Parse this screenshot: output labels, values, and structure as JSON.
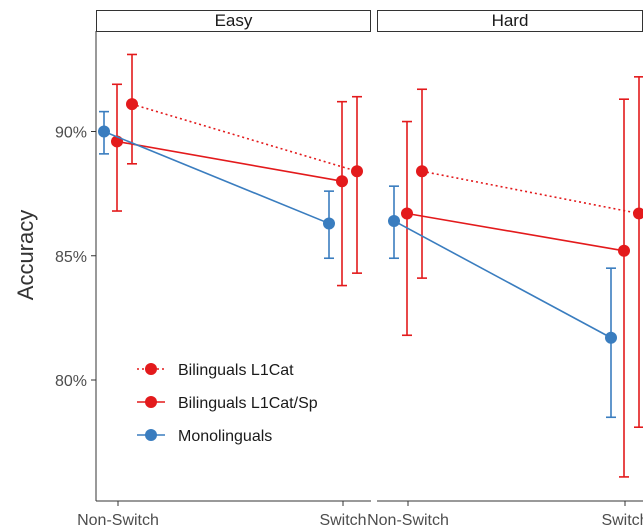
{
  "chart_data": {
    "type": "line",
    "ylabel": "Accuracy",
    "xlabel": "",
    "ylim": [
      75.0,
      94.5
    ],
    "yticks": [
      80,
      85,
      90
    ],
    "ytick_labels": [
      "80%",
      "85%",
      "90%"
    ],
    "categories": [
      "Non-Switch",
      "Switch"
    ],
    "grid": false,
    "legend_position": "bottom-left",
    "panels": [
      {
        "title": "Easy",
        "series": [
          {
            "name": "Bilinguals L1Cat",
            "color": "#e31a1c",
            "line_style": "dotted",
            "values": [
              91.1,
              88.4
            ],
            "ci_low": [
              88.7,
              84.3
            ],
            "ci_high": [
              93.1,
              91.4
            ]
          },
          {
            "name": "Bilinguals L1Cat/Sp",
            "color": "#e31a1c",
            "line_style": "solid",
            "values": [
              89.6,
              88.0
            ],
            "ci_low": [
              86.8,
              83.8
            ],
            "ci_high": [
              91.9,
              91.2
            ]
          },
          {
            "name": "Monolinguals",
            "color": "#3a7dbf",
            "line_style": "solid",
            "values": [
              90.0,
              86.3
            ],
            "ci_low": [
              89.1,
              84.9
            ],
            "ci_high": [
              90.8,
              87.6
            ]
          }
        ]
      },
      {
        "title": "Hard",
        "series": [
          {
            "name": "Bilinguals L1Cat",
            "color": "#e31a1c",
            "line_style": "dotted",
            "values": [
              88.4,
              86.7
            ],
            "ci_low": [
              84.1,
              78.1
            ],
            "ci_high": [
              91.7,
              92.2
            ]
          },
          {
            "name": "Bilinguals L1Cat/Sp",
            "color": "#e31a1c",
            "line_style": "solid",
            "values": [
              86.7,
              85.2
            ],
            "ci_low": [
              81.8,
              76.1
            ],
            "ci_high": [
              90.4,
              91.3
            ]
          },
          {
            "name": "Monolinguals",
            "color": "#3a7dbf",
            "line_style": "solid",
            "values": [
              86.4,
              81.7
            ],
            "ci_low": [
              84.9,
              78.5
            ],
            "ci_high": [
              87.8,
              84.5
            ]
          }
        ]
      }
    ],
    "legend": [
      "Bilinguals L1Cat",
      "Bilinguals L1Cat/Sp",
      "Monolinguals"
    ]
  }
}
